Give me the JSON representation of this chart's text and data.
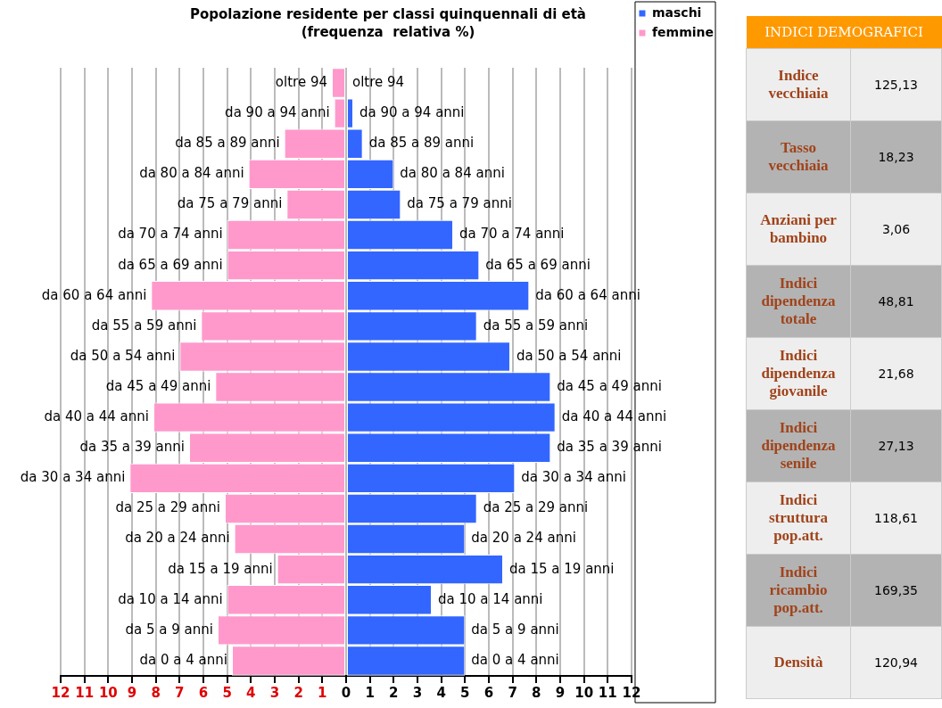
{
  "chart_data": [
    {
      "type": "bar",
      "orientation": "horizontal",
      "stacked": true,
      "title": "Popolazione residente per classi quinquennali di età",
      "subtitle": "(frequenza  relativa %)",
      "categories": [
        "oltre 94",
        "da 90 a 94 anni",
        "da 85 a 89 anni",
        "da 80 a 84 anni",
        "da 75 a 79 anni",
        "da 70 a 74 anni",
        "da 65 a 69 anni",
        "da 60 a 64 anni",
        "da 55 a 59 anni",
        "da 50 a 54 anni",
        "da 45 a 49 anni",
        "da 40 a 44 anni",
        "da 35 a 39 anni",
        "da 30 a 34 anni",
        "da 25 a 29 anni",
        "da 20 a 24 anni",
        "da 15 a 19 anni",
        "da 10 a 14 anni",
        "da 5 a 9 anni",
        "da 0 a 4 anni"
      ],
      "series": [
        {
          "name": "maschi",
          "color": "#3366ff",
          "values": [
            0,
            0.3,
            0.7,
            2.0,
            2.3,
            4.5,
            5.6,
            7.7,
            5.5,
            6.9,
            8.6,
            8.8,
            8.6,
            7.1,
            5.5,
            5.0,
            6.6,
            3.6,
            5.0,
            5.0
          ]
        },
        {
          "name": "femmine",
          "color": "#ff99cc",
          "values": [
            -0.6,
            -0.5,
            -2.6,
            -4.1,
            -2.5,
            -5.0,
            -5.0,
            -8.2,
            -6.1,
            -7.0,
            -5.5,
            -8.1,
            -6.6,
            -9.1,
            -5.1,
            -4.7,
            -2.9,
            -5.0,
            -5.4,
            -4.8
          ]
        }
      ],
      "xlim": [
        -12,
        12
      ],
      "xticks": [
        {
          "value": -12,
          "label": "12"
        },
        {
          "value": -11,
          "label": "11"
        },
        {
          "value": -10,
          "label": "10"
        },
        {
          "value": -9,
          "label": "9"
        },
        {
          "value": -8,
          "label": "8"
        },
        {
          "value": -7,
          "label": "7"
        },
        {
          "value": -6,
          "label": "6"
        },
        {
          "value": -5,
          "label": "5"
        },
        {
          "value": -4,
          "label": "4"
        },
        {
          "value": -3,
          "label": "3"
        },
        {
          "value": -2,
          "label": "2"
        },
        {
          "value": -1,
          "label": "1"
        },
        0,
        1,
        2,
        3,
        4,
        5,
        6,
        7,
        8,
        9,
        10,
        11,
        12
      ],
      "grid": "x",
      "legend": "top right"
    },
    {
      "type": "other",
      "title": "INDICI DEMOGRAFICI",
      "annotations": [
        "Indice vecchiaia",
        "125,13",
        "Tasso vecchiaia",
        "18,23",
        "Anziani per bambino",
        "3,06",
        "Indici dipendenza totale",
        "48,81",
        "Indici dipendenza giovanile",
        "21,68",
        "Indici dipendenza senile",
        "27,13",
        "Indici struttura pop.att.",
        "118,61",
        "Indici ricambio pop.att.",
        "169,35",
        "Densità",
        "120,94"
      ]
    }
  ]
}
